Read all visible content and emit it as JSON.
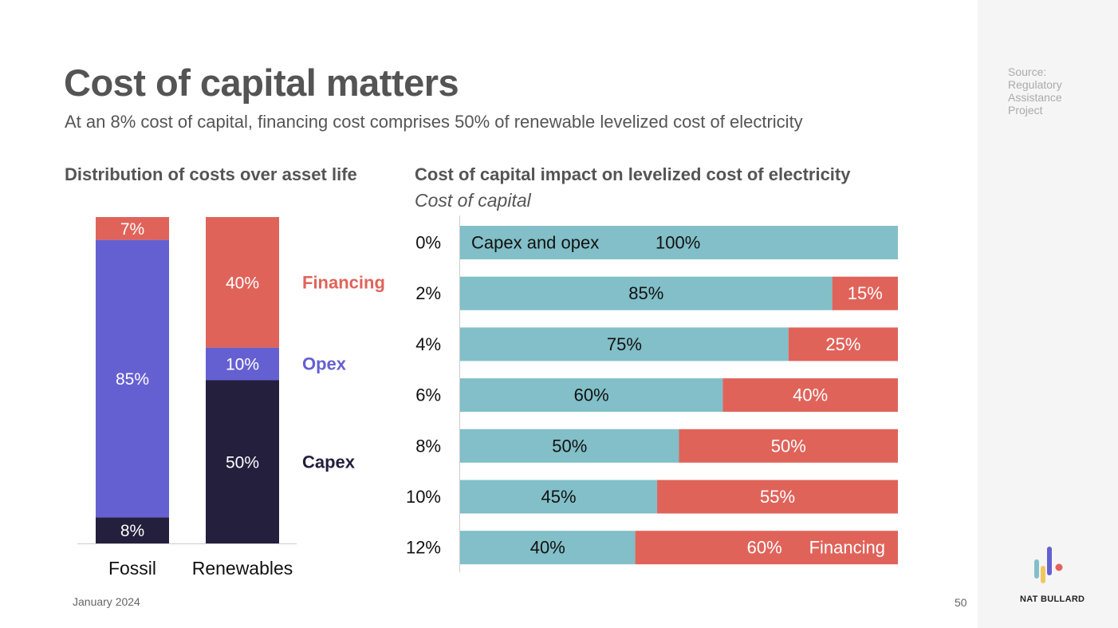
{
  "title": "Cost of capital matters",
  "subtitle": "At an 8% cost of capital, financing cost comprises 50% of renewable levelized cost of electricity",
  "source": "Source: Regulatory Assistance Project",
  "date": "January 2024",
  "page_number": "50",
  "brand": {
    "name": "NAT BULLARD",
    "logo_icon": "bar-chart-logo-icon"
  },
  "colors": {
    "capex": "#231f3d",
    "opex": "#6560d1",
    "financing": "#e0635a",
    "capex_and_opex": "#82bfc8",
    "axis": "#cccccc",
    "bar_text_light": "#ffffff",
    "bar_text_dark": "#111111"
  },
  "chart_data": [
    {
      "type": "bar",
      "stacked": true,
      "title": "Distribution of costs over asset life",
      "categories": [
        "Fossil",
        "Renewables"
      ],
      "series": [
        {
          "name": "Capex",
          "values": [
            8,
            50
          ],
          "labels": [
            "8%",
            "50%"
          ]
        },
        {
          "name": "Opex",
          "values": [
            85,
            10
          ],
          "labels": [
            "85%",
            "10%"
          ]
        },
        {
          "name": "Financing",
          "values": [
            7,
            40
          ],
          "labels": [
            "7%",
            "40%"
          ]
        }
      ],
      "ylim": [
        0,
        100
      ],
      "legend_placement": "right"
    },
    {
      "type": "bar",
      "orientation": "horizontal",
      "stacked": true,
      "title": "Cost of capital impact on levelized cost of electricity",
      "ylabel": "Cost of capital",
      "categories": [
        "0%",
        "2%",
        "4%",
        "6%",
        "8%",
        "10%",
        "12%"
      ],
      "series": [
        {
          "name": "Capex and opex",
          "values": [
            100,
            85,
            75,
            60,
            50,
            45,
            40
          ],
          "labels": [
            "100%",
            "85%",
            "75%",
            "60%",
            "50%",
            "45%",
            "40%"
          ]
        },
        {
          "name": "Financing",
          "values": [
            0,
            15,
            25,
            40,
            50,
            55,
            60
          ],
          "labels": [
            "",
            "15%",
            "25%",
            "40%",
            "50%",
            "55%",
            "60%"
          ]
        }
      ],
      "xlim": [
        0,
        100
      ]
    }
  ]
}
